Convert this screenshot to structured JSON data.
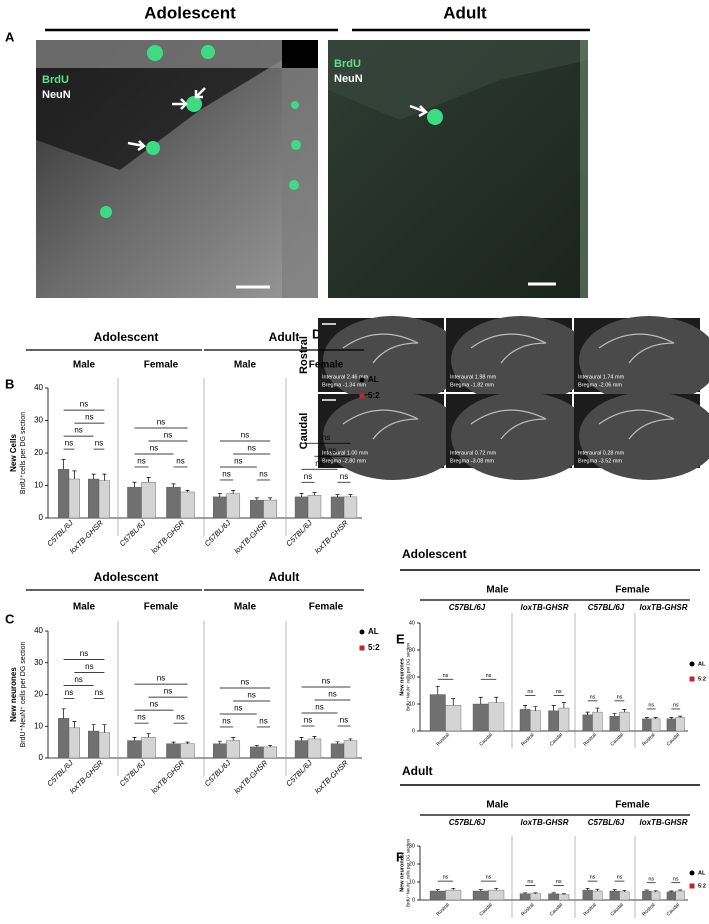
{
  "panel_a": {
    "letter": "A",
    "columns": [
      {
        "title": "Adolescent",
        "labels": [
          "BrdU",
          "NeuN"
        ]
      },
      {
        "title": "Adult",
        "labels": [
          "BrdU",
          "NeuN"
        ]
      }
    ]
  },
  "panel_d": {
    "letter": "D",
    "rows": [
      {
        "label": "Rostral",
        "sections": [
          [
            "Interaural 2.46 mm",
            "Bregma  -1.34 mm"
          ],
          [
            "Interaural 1.98 mm",
            "Bregma  -1.82 mm"
          ],
          [
            "Interaural 1.74 mm",
            "Bregma  -2.06 mm"
          ]
        ]
      },
      {
        "label": "Caudal",
        "sections": [
          [
            "Interaural 1.00 mm",
            "Bregma  -2.80 mm"
          ],
          [
            "Interaural 0.72 mm",
            "Bregma  -3.08 mm"
          ],
          [
            "Interaural 0.28 mm",
            "Bregma  -3.52 mm"
          ]
        ]
      }
    ]
  },
  "chart_data": [
    {
      "type": "bar",
      "letter": "B",
      "y_label": [
        "New Cells",
        "BrdU⁺cells per DG section"
      ],
      "ylim": [
        0,
        40
      ],
      "yticks": [
        0,
        10,
        20,
        30,
        40
      ],
      "series": [
        {
          "name": "AL",
          "color": "#707070",
          "marker_color": "#000000"
        },
        {
          "name": "5:2",
          "color": "#d4d4d4",
          "marker_color": "#c1272d"
        }
      ],
      "headers": [
        "Adolescent",
        "Adult"
      ],
      "panels": [
        {
          "label": "Male",
          "categories": [
            "C57BL/6J",
            "loxTB-GHSR"
          ],
          "series": [
            {
              "values": [
                15,
                12
              ],
              "errors": [
                3,
                1.5
              ]
            },
            {
              "values": [
                12,
                11.5
              ],
              "errors": [
                2.5,
                2
              ]
            }
          ],
          "annotations": [
            "ns",
            "ns",
            "ns",
            "ns",
            "ns"
          ]
        },
        {
          "label": "Female",
          "categories": [
            "C57BL/6J",
            "loxTB-GHSR"
          ],
          "series": [
            {
              "values": [
                9.5,
                9.5
              ],
              "errors": [
                1.5,
                1
              ]
            },
            {
              "values": [
                11,
                8
              ],
              "errors": [
                1.5,
                0.5
              ]
            }
          ],
          "annotations": [
            "ns",
            "ns",
            "ns",
            "ns",
            "ns"
          ]
        },
        {
          "label": "Male",
          "categories": [
            "C57BL/6J",
            "loxTB-GHSR"
          ],
          "series": [
            {
              "values": [
                6.5,
                5.5
              ],
              "errors": [
                1,
                0.7
              ]
            },
            {
              "values": [
                7.5,
                5.5
              ],
              "errors": [
                1,
                0.7
              ]
            }
          ],
          "annotations": [
            "ns",
            "ns",
            "ns",
            "ns",
            "ns"
          ]
        },
        {
          "label": "Female",
          "categories": [
            "C57BL/6J",
            "loxTB-GHSR"
          ],
          "series": [
            {
              "values": [
                6.5,
                6.5
              ],
              "errors": [
                1,
                0.7
              ]
            },
            {
              "values": [
                7,
                6.5
              ],
              "errors": [
                0.8,
                0.7
              ]
            }
          ],
          "annotations": [
            "ns",
            "ns",
            "ns",
            "ns",
            "ns"
          ]
        }
      ]
    },
    {
      "type": "bar",
      "letter": "C",
      "y_label": [
        "New neurones",
        "BrdU⁺NeuN⁺ cells per DG section"
      ],
      "ylim": [
        0,
        40
      ],
      "yticks": [
        0,
        10,
        20,
        30,
        40
      ],
      "series": [
        {
          "name": "AL",
          "color": "#707070",
          "marker_color": "#000000"
        },
        {
          "name": "5:2",
          "color": "#d4d4d4",
          "marker_color": "#c1272d"
        }
      ],
      "headers": [
        "Adolescent",
        "Adult"
      ],
      "panels": [
        {
          "label": "Male",
          "categories": [
            "C57BL/6J",
            "loxTB-GHSR"
          ],
          "series": [
            {
              "values": [
                12.5,
                8.5
              ],
              "errors": [
                3,
                2
              ]
            },
            {
              "values": [
                9.5,
                8
              ],
              "errors": [
                2,
                2.5
              ]
            }
          ],
          "annotations": [
            "ns",
            "ns",
            "ns",
            "ns",
            "ns"
          ]
        },
        {
          "label": "Female",
          "categories": [
            "C57BL/6J",
            "loxTB-GHSR"
          ],
          "series": [
            {
              "values": [
                5.5,
                4.5
              ],
              "errors": [
                1,
                0.5
              ]
            },
            {
              "values": [
                6.5,
                4.5
              ],
              "errors": [
                1.2,
                0.5
              ]
            }
          ],
          "annotations": [
            "ns",
            "ns",
            "ns",
            "ns",
            "ns"
          ]
        },
        {
          "label": "Male",
          "categories": [
            "C57BL/6J",
            "loxTB-GHSR"
          ],
          "series": [
            {
              "values": [
                4.5,
                3.5
              ],
              "errors": [
                0.8,
                0.5
              ]
            },
            {
              "values": [
                5.5,
                3.5
              ],
              "errors": [
                1,
                0.5
              ]
            }
          ],
          "annotations": [
            "ns",
            "ns",
            "ns",
            "ns",
            "ns"
          ]
        },
        {
          "label": "Female",
          "categories": [
            "C57BL/6J",
            "loxTB-GHSR"
          ],
          "series": [
            {
              "values": [
                5.5,
                4.5
              ],
              "errors": [
                1,
                0.6
              ]
            },
            {
              "values": [
                6,
                5.5
              ],
              "errors": [
                0.8,
                0.5
              ]
            }
          ],
          "annotations": [
            "ns",
            "ns",
            "ns",
            "ns",
            "ns"
          ]
        }
      ]
    },
    {
      "type": "bar",
      "letter": "E",
      "title": "Adolescent",
      "y_label": [
        "New neurones",
        "BrdU⁺NeuN⁺ cells per DG section"
      ],
      "ylim": [
        0,
        40
      ],
      "yticks": [
        0,
        10,
        20,
        30,
        40
      ],
      "series": [
        {
          "name": "AL",
          "color": "#707070",
          "marker_color": "#000000"
        },
        {
          "name": "5:2",
          "color": "#d4d4d4",
          "marker_color": "#c1272d"
        }
      ],
      "headers": [
        "Male",
        "Female"
      ],
      "panels": [
        {
          "label": "C57BL/6J",
          "categories": [
            "Rostral",
            "Caudal"
          ],
          "series": [
            {
              "values": [
                13.5,
                10
              ],
              "errors": [
                3,
                2.5
              ]
            },
            {
              "values": [
                9.5,
                10.5
              ],
              "errors": [
                2.5,
                2
              ]
            }
          ],
          "annotations": [
            "ns",
            "ns"
          ]
        },
        {
          "label": "loxTB-GHSR",
          "categories": [
            "Rostral",
            "Caudal"
          ],
          "series": [
            {
              "values": [
                8,
                7.5
              ],
              "errors": [
                1.5,
                2
              ]
            },
            {
              "values": [
                7.5,
                8.5
              ],
              "errors": [
                1.5,
                2
              ]
            }
          ],
          "annotations": [
            "ns",
            "ns"
          ]
        },
        {
          "label": "C57BL/6J",
          "categories": [
            "Rostral",
            "Caudal"
          ],
          "series": [
            {
              "values": [
                6,
                5.5
              ],
              "errors": [
                1,
                1
              ]
            },
            {
              "values": [
                7,
                7
              ],
              "errors": [
                1.5,
                1
              ]
            }
          ],
          "annotations": [
            "ns",
            "ns"
          ]
        },
        {
          "label": "loxTB-GHSR",
          "categories": [
            "Rostral",
            "Caudal"
          ],
          "series": [
            {
              "values": [
                4.5,
                4.5
              ],
              "errors": [
                0.5,
                0.5
              ]
            },
            {
              "values": [
                4.5,
                5
              ],
              "errors": [
                0.5,
                0.5
              ]
            }
          ],
          "annotations": [
            "ns",
            "ns"
          ]
        }
      ]
    },
    {
      "type": "bar",
      "letter": "F",
      "title": "Adult",
      "y_label": [
        "New neurones",
        "BrdU⁺NeuN⁺ cells per DG section"
      ],
      "ylim": [
        0,
        30
      ],
      "yticks": [
        0,
        10,
        20,
        30
      ],
      "series": [
        {
          "name": "AL",
          "color": "#707070",
          "marker_color": "#000000"
        },
        {
          "name": "5:2",
          "color": "#d4d4d4",
          "marker_color": "#c1272d"
        }
      ],
      "headers": [
        "Male",
        "Female"
      ],
      "panels": [
        {
          "label": "C57BL/6J",
          "categories": [
            "Rostral",
            "Caudal"
          ],
          "series": [
            {
              "values": [
                5,
                5
              ],
              "errors": [
                0.8,
                0.8
              ]
            },
            {
              "values": [
                5.5,
                5.5
              ],
              "errors": [
                1,
                1
              ]
            }
          ],
          "annotations": [
            "ns",
            "ns"
          ]
        },
        {
          "label": "loxTB-GHSR",
          "categories": [
            "Rostral",
            "Caudal"
          ],
          "series": [
            {
              "values": [
                3.5,
                3.5
              ],
              "errors": [
                0.5,
                0.5
              ]
            },
            {
              "values": [
                3.5,
                3
              ],
              "errors": [
                0.5,
                0.5
              ]
            }
          ],
          "annotations": [
            "ns",
            "ns"
          ]
        },
        {
          "label": "C57BL/6J",
          "categories": [
            "Rostral",
            "Caudal"
          ],
          "series": [
            {
              "values": [
                5.5,
                5
              ],
              "errors": [
                1,
                0.8
              ]
            },
            {
              "values": [
                5,
                4.5
              ],
              "errors": [
                1,
                0.8
              ]
            }
          ],
          "annotations": [
            "ns",
            "ns"
          ]
        },
        {
          "label": "loxTB-GHSR",
          "categories": [
            "Rostral",
            "Caudal"
          ],
          "series": [
            {
              "values": [
                5,
                4.5
              ],
              "errors": [
                0.6,
                0.5
              ]
            },
            {
              "values": [
                4.5,
                5
              ],
              "errors": [
                0.6,
                0.6
              ]
            }
          ],
          "annotations": [
            "ns",
            "ns"
          ]
        }
      ]
    }
  ]
}
